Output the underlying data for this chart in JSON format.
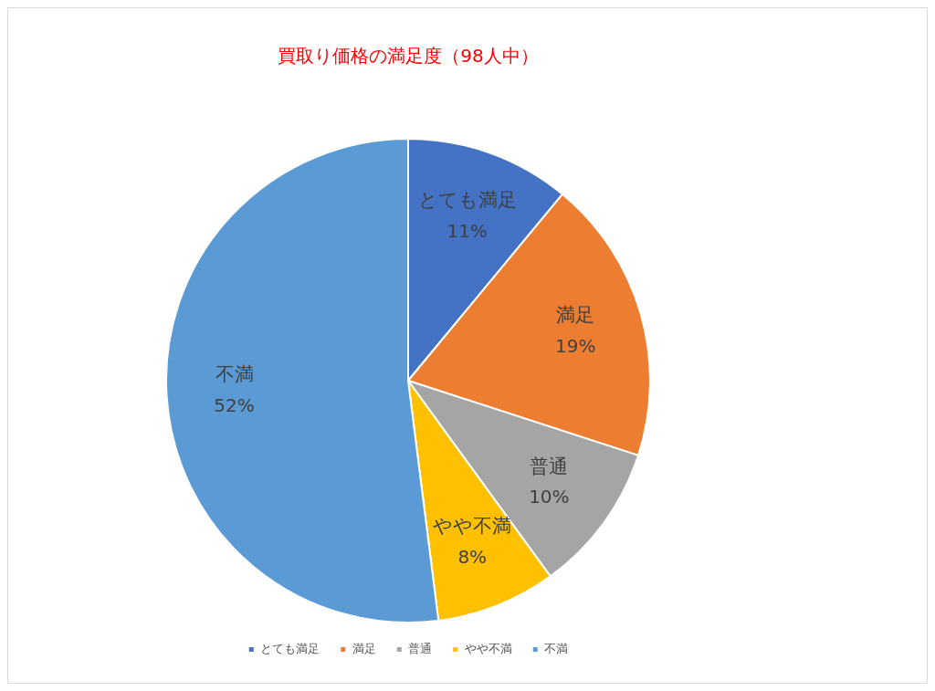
{
  "chart_data": {
    "type": "pie",
    "title": "買取り価格の満足度（98人中）",
    "categories": [
      "とても満足",
      "満足",
      "普通",
      "やや不満",
      "不満"
    ],
    "values": [
      11,
      19,
      10,
      8,
      52
    ],
    "value_labels": [
      "11%",
      "19%",
      "10%",
      "8%",
      "52%"
    ],
    "colors": [
      "#4472c4",
      "#ed7d31",
      "#a5a5a5",
      "#ffc000",
      "#5b9bd5"
    ],
    "legend": "bottom"
  }
}
